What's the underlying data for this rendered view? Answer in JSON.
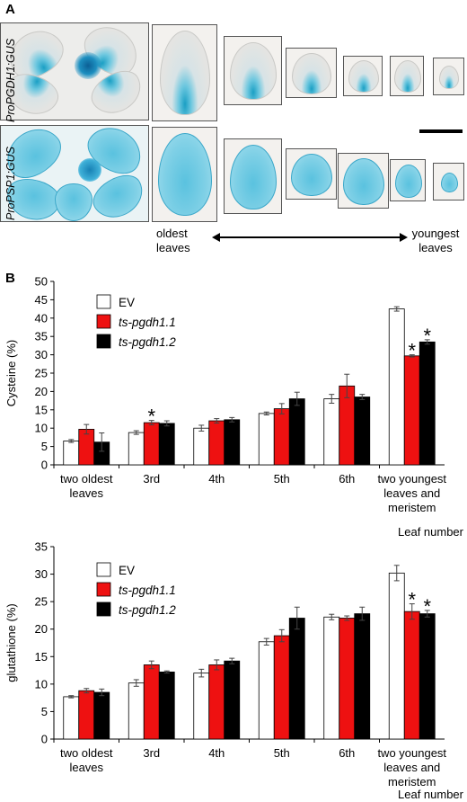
{
  "panel_a": {
    "label": "A",
    "row1_label": "ProPGDH1:GUS",
    "row2_label": "ProPSP1:GUS",
    "oldest": "oldest\nleaves",
    "youngest": "youngest\nleaves"
  },
  "panel_b": {
    "label": "B"
  },
  "colors": {
    "EV": "#ffffff",
    "ts-pgdh1.1": "#ee1111",
    "ts-pgdh1.2": "#000000"
  },
  "chart_data": [
    {
      "type": "bar",
      "ylabel": "Cysteine (%)",
      "xlabel": "Leaf number",
      "ylim": [
        0,
        50
      ],
      "yticks": [
        0,
        5,
        10,
        15,
        20,
        25,
        30,
        35,
        40,
        45,
        50
      ],
      "categories": [
        "two oldest leaves",
        "3rd",
        "4th",
        "5th",
        "6th",
        "two youngest leaves and meristem"
      ],
      "series": [
        {
          "name": "EV",
          "values": [
            6.5,
            8.8,
            10.0,
            14.0,
            18.0,
            42.5
          ],
          "errors": [
            0.4,
            0.5,
            0.8,
            0.4,
            1.2,
            0.6
          ]
        },
        {
          "name": "ts-pgdh1.1",
          "values": [
            9.7,
            11.5,
            12.0,
            15.3,
            21.5,
            29.7
          ],
          "errors": [
            1.3,
            0.6,
            0.6,
            1.4,
            3.2,
            0.3
          ]
        },
        {
          "name": "ts-pgdh1.2",
          "values": [
            6.2,
            11.3,
            12.3,
            18.0,
            18.5,
            33.5
          ],
          "errors": [
            2.5,
            0.7,
            0.6,
            1.8,
            0.7,
            0.6
          ]
        }
      ],
      "asterisks": [
        [
          1,
          1
        ],
        [
          5,
          1
        ],
        [
          5,
          2
        ]
      ],
      "asterisk_symbol": "*"
    },
    {
      "type": "bar",
      "ylabel": "glutathione (%)",
      "xlabel": "Leaf number",
      "ylim": [
        0,
        35
      ],
      "yticks": [
        0,
        5,
        10,
        15,
        20,
        25,
        30,
        35
      ],
      "categories": [
        "two oldest leaves",
        "3rd",
        "4th",
        "5th",
        "6th",
        "two youngest leaves and meristem"
      ],
      "series": [
        {
          "name": "EV",
          "values": [
            7.7,
            10.2,
            12.0,
            17.7,
            22.2,
            30.2
          ],
          "errors": [
            0.2,
            0.6,
            0.7,
            0.6,
            0.5,
            1.4
          ]
        },
        {
          "name": "ts-pgdh1.1",
          "values": [
            8.8,
            13.5,
            13.5,
            18.8,
            22.0,
            23.2
          ],
          "errors": [
            0.4,
            0.7,
            0.9,
            1.1,
            0.4,
            1.4
          ]
        },
        {
          "name": "ts-pgdh1.2",
          "values": [
            8.5,
            12.2,
            14.2,
            22.0,
            22.8,
            22.8
          ],
          "errors": [
            0.6,
            0.2,
            0.5,
            2.0,
            1.2,
            0.6
          ]
        }
      ],
      "asterisks": [
        [
          5,
          1
        ],
        [
          5,
          2
        ]
      ],
      "asterisk_symbol": "*"
    }
  ]
}
